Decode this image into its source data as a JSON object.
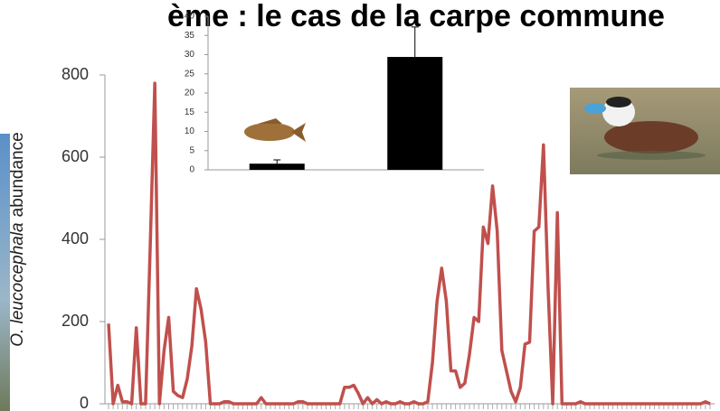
{
  "slide": {
    "title": "ème : le cas de la carpe commune"
  },
  "chart_data": [
    {
      "type": "line",
      "ylabel": {
        "italic": "O. leucocephala",
        "rest": "abundance"
      },
      "color": "#c0504d",
      "values": [
        195,
        0,
        45,
        5,
        5,
        0,
        185,
        0,
        0,
        380,
        780,
        0,
        130,
        210,
        30,
        20,
        15,
        60,
        140,
        280,
        230,
        150,
        0,
        0,
        0,
        5,
        5,
        0,
        0,
        0,
        0,
        0,
        0,
        15,
        0,
        0,
        0,
        0,
        0,
        0,
        0,
        5,
        5,
        0,
        0,
        0,
        0,
        0,
        0,
        0,
        0,
        40,
        40,
        45,
        25,
        0,
        15,
        0,
        10,
        0,
        5,
        0,
        0,
        5,
        0,
        0,
        5,
        0,
        0,
        5,
        100,
        250,
        330,
        250,
        80,
        80,
        40,
        50,
        120,
        210,
        200,
        430,
        390,
        530,
        420,
        130,
        80,
        30,
        5,
        40,
        145,
        150,
        420,
        430,
        630,
        280,
        0,
        465,
        0,
        0,
        0,
        0,
        5,
        0,
        0,
        0,
        0,
        0,
        0,
        0,
        0,
        0,
        0,
        0,
        0,
        0,
        0,
        0,
        0,
        0,
        0,
        0,
        0,
        0,
        0,
        0,
        0,
        0,
        0,
        5,
        0
      ],
      "ylim": [
        0,
        800
      ],
      "yticks": [
        0,
        200,
        400,
        600,
        800
      ]
    },
    {
      "type": "bar",
      "categories": [
        null,
        null
      ],
      "values": [
        1.6,
        29.4
      ],
      "errors": [
        1.0,
        7.8
      ],
      "color": "#000000",
      "ylim": [
        0,
        40
      ],
      "yticks": [
        0,
        5,
        10,
        15,
        20,
        25,
        30,
        35,
        40
      ]
    }
  ]
}
